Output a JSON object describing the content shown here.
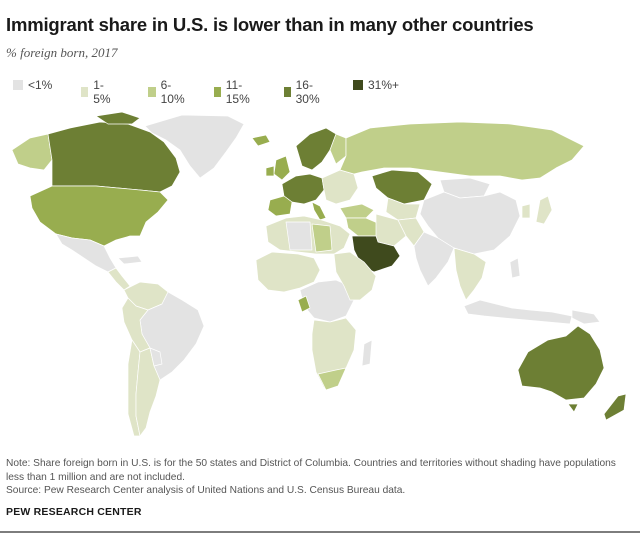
{
  "header": {
    "title": "Immigrant share in U.S. is lower than in many other countries",
    "subtitle": "% foreign born, 2017"
  },
  "legend": [
    {
      "label": "<1%",
      "color": "#e3e3e3"
    },
    {
      "label": "1-5%",
      "color": "#dfe4c7"
    },
    {
      "label": "6-10%",
      "color": "#c0cf8a"
    },
    {
      "label": "11-15%",
      "color": "#98ad4f"
    },
    {
      "label": "16-30%",
      "color": "#6d7f34"
    },
    {
      "label": "31%+",
      "color": "#3f4a1d"
    }
  ],
  "footer": {
    "note": "Note: Share foreign born in U.S. is for the 50 states and District of Columbia. Countries and territories without shading have populations less than 1 million and are not included.",
    "source": "Source: Pew Research Center analysis of United Nations and U.S. Census Bureau data.",
    "brand": "PEW RESEARCH CENTER"
  }
}
